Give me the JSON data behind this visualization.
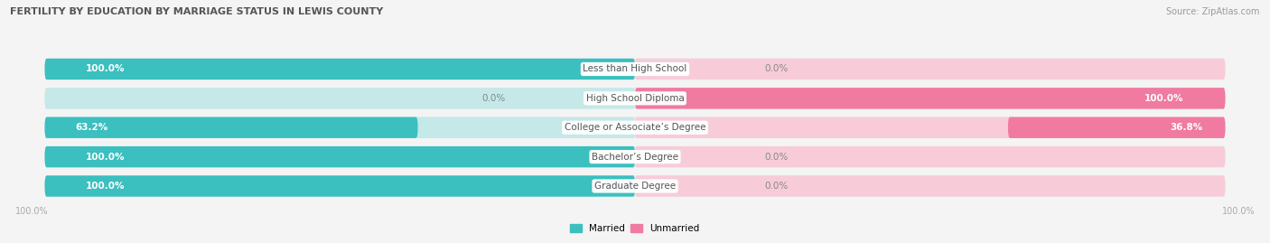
{
  "title": "FERTILITY BY EDUCATION BY MARRIAGE STATUS IN LEWIS COUNTY",
  "source": "Source: ZipAtlas.com",
  "categories": [
    "Less than High School",
    "High School Diploma",
    "College or Associate’s Degree",
    "Bachelor’s Degree",
    "Graduate Degree"
  ],
  "married": [
    100.0,
    0.0,
    63.2,
    100.0,
    100.0
  ],
  "unmarried": [
    0.0,
    100.0,
    36.8,
    0.0,
    0.0
  ],
  "married_color": "#3bbfbf",
  "unmarried_color": "#f07aa0",
  "married_light": "#c5e8e8",
  "unmarried_light": "#f7ccd8",
  "bg_color": "#f4f4f4",
  "bar_bg_color": "#e8e8e8",
  "title_color": "#555555",
  "source_color": "#999999",
  "pct_color_inside": "#ffffff",
  "pct_color_outside": "#888888",
  "cat_label_color": "#555555",
  "axis_tick_color": "#aaaaaa",
  "figsize": [
    14.06,
    2.69
  ],
  "dpi": 100,
  "bar_height": 0.72,
  "bar_gap": 0.08,
  "xlim": [
    -105,
    105
  ]
}
